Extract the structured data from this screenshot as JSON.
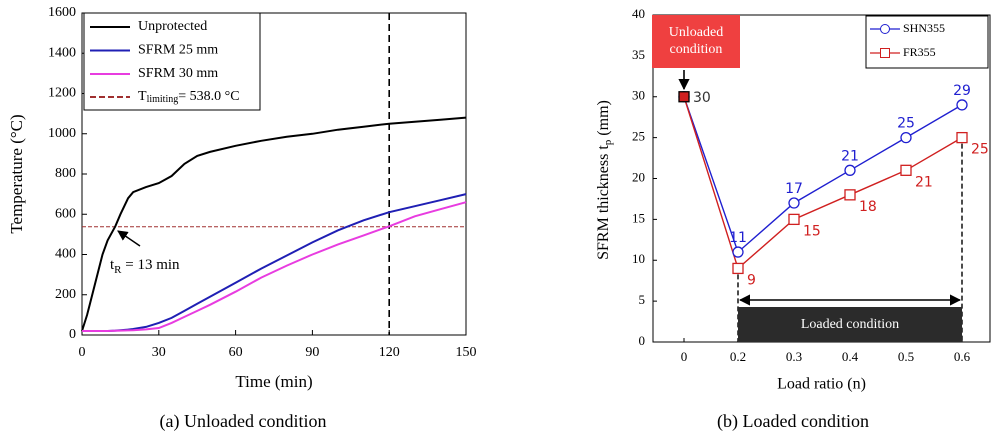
{
  "chart_data": [
    {
      "type": "line",
      "x_label": "Time (min)",
      "y_label": "Temperature (°C)",
      "caption": "(a) Unloaded condition",
      "x": [
        0,
        2,
        3,
        5,
        8,
        10,
        13,
        15,
        18,
        20,
        25,
        30,
        35,
        40,
        45,
        50,
        60,
        70,
        80,
        90,
        100,
        110,
        120,
        130,
        140,
        150
      ],
      "series": [
        {
          "name": "Unprotected",
          "color": "#000000",
          "values": [
            20,
            100,
            150,
            250,
            400,
            470,
            540,
            600,
            680,
            710,
            735,
            755,
            790,
            850,
            890,
            910,
            940,
            965,
            985,
            1000,
            1020,
            1035,
            1050,
            1060,
            1070,
            1080
          ]
        },
        {
          "name": "SFRM 25 mm",
          "color": "#1f1fb4",
          "values": [
            20,
            20,
            20,
            20,
            20,
            20,
            22,
            24,
            27,
            30,
            40,
            60,
            85,
            120,
            155,
            190,
            260,
            330,
            395,
            460,
            520,
            570,
            610,
            640,
            670,
            700
          ]
        },
        {
          "name": "SFRM 30 mm",
          "color": "#e83ce0",
          "values": [
            20,
            20,
            20,
            20,
            20,
            20,
            21,
            22,
            23,
            24,
            28,
            35,
            60,
            90,
            120,
            150,
            215,
            285,
            345,
            400,
            450,
            495,
            540,
            590,
            625,
            660
          ]
        }
      ],
      "hline": {
        "value": 538.0,
        "color": "#a03030",
        "label": "T",
        "label_sub": "limiting",
        "label_rest": "= 538.0 °C"
      },
      "vline": {
        "value": 120,
        "color": "#000000"
      },
      "annotation": {
        "text": "t",
        "sub": "R",
        "rest": " = 13 min"
      },
      "xlim": [
        0,
        150
      ],
      "xticks": [
        0,
        30,
        60,
        90,
        120,
        150
      ],
      "ylim": [
        0,
        1600
      ],
      "yticks": [
        0,
        200,
        400,
        600,
        800,
        1000,
        1200,
        1400,
        1600
      ]
    },
    {
      "type": "marker-line",
      "x_label": "Load ratio (n)",
      "y_label": "SFRM thickness t",
      "y_label_sub": "p",
      "y_label_unit": " (mm)",
      "caption": "(b) Loaded condition",
      "categories": [
        "0",
        "0.2",
        "0.3",
        "0.4",
        "0.5",
        "0.6"
      ],
      "series": [
        {
          "name": "SHN355",
          "color": "#1f1fd0",
          "marker": "circle",
          "values": [
            30,
            11,
            17,
            21,
            25,
            29
          ]
        },
        {
          "name": "FR355",
          "color": "#d02020",
          "marker": "square",
          "values": [
            30,
            9,
            15,
            18,
            21,
            25
          ]
        }
      ],
      "annotations": [
        "Unloaded condition",
        "Loaded condition"
      ],
      "ylim": [
        0,
        40
      ],
      "yticks": [
        0,
        5,
        10,
        15,
        20,
        25,
        30,
        35,
        40
      ]
    }
  ]
}
